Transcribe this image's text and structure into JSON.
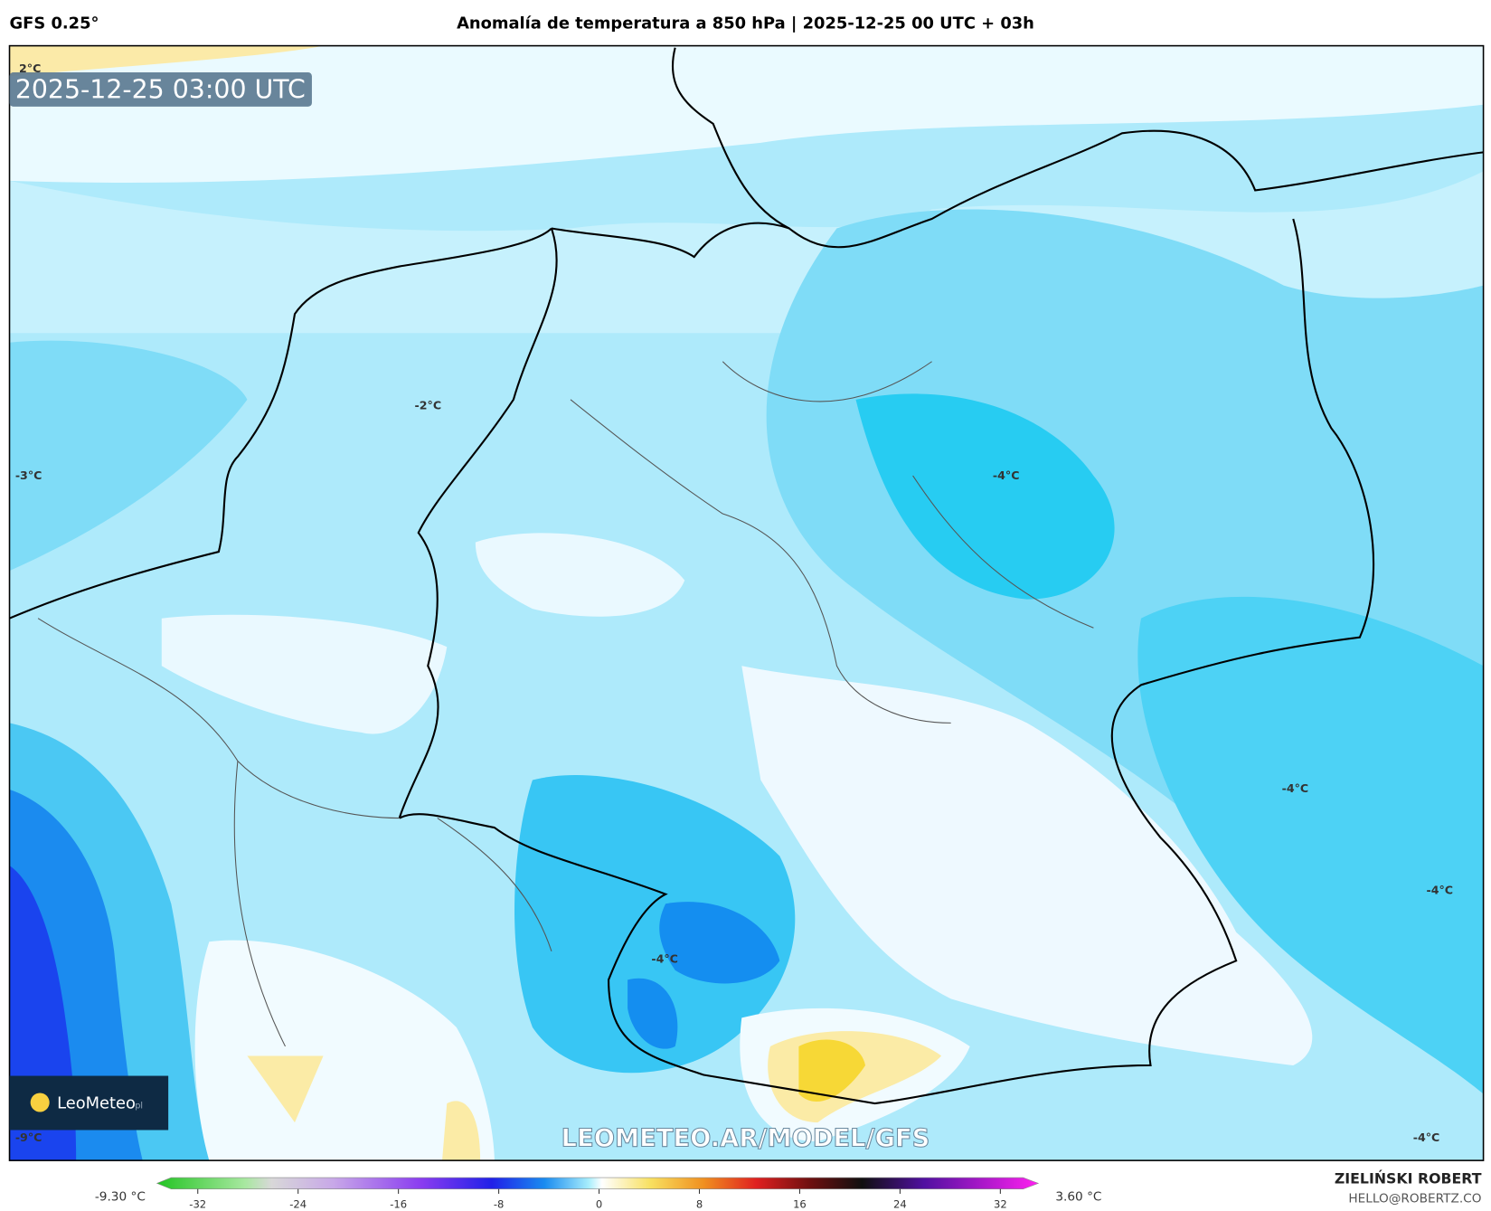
{
  "header": {
    "model": "GFS 0.25°",
    "title": "Anomalía de temperatura a 850 hPa | 2025-12-25 00 UTC + 03h"
  },
  "map": {
    "timestamp": "2025-12-25 03:00 UTC",
    "watermark": "LEOMETEO.AR/MODEL/GFS",
    "logo": "LeoMeteo",
    "logo_suffix": "pl",
    "contour_labels": [
      "2°C",
      "-2°C",
      "-3°C",
      "-4°C",
      "-4°C",
      "-4°C",
      "-4°C",
      "-9°C",
      "-4°C"
    ]
  },
  "colorbar": {
    "min_label": "-9.30 °C",
    "max_label": "3.60 °C",
    "ticks": [
      -32,
      -24,
      -16,
      -8,
      0,
      8,
      16,
      24,
      32
    ]
  },
  "footer": {
    "author": "ZIELIŃSKI ROBERT",
    "email": "HELLO@ROBERTZ.CO"
  }
}
